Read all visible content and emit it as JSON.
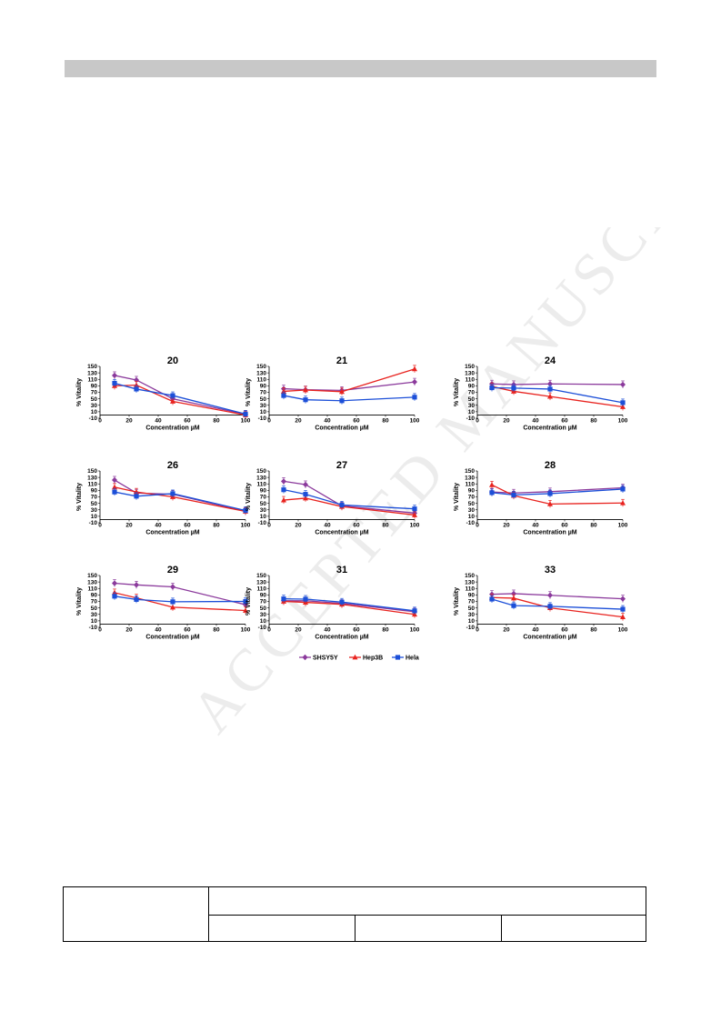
{
  "colors": {
    "SHSY5Y": "#8b3a9c",
    "Hep3B": "#e8231f",
    "Hela": "#1c4fd8",
    "header_bar": "#c8c8c8",
    "watermark": "#ececec"
  },
  "watermark": {
    "text": "ACCEPTED MANUSCRIPT"
  },
  "legend": [
    "SHSY5Y",
    "Hep3B",
    "Hela"
  ],
  "chart_data": [
    {
      "type": "line",
      "title": "20",
      "xlabel": "Concentration µM",
      "ylabel": "% Vitality",
      "x": [
        10,
        25,
        50,
        100
      ],
      "xlim": [
        0,
        100
      ],
      "ylim": [
        -10,
        150
      ],
      "xticks": [
        0,
        20,
        40,
        60,
        80,
        100
      ],
      "yticks": [
        -10,
        10,
        30,
        50,
        70,
        90,
        110,
        130,
        150
      ],
      "series": [
        {
          "name": "SHSY5Y",
          "values": [
            122,
            108,
            50,
            2
          ]
        },
        {
          "name": "Hep3B",
          "values": [
            90,
            92,
            42,
            0
          ]
        },
        {
          "name": "Hela",
          "values": [
            98,
            80,
            60,
            3
          ]
        }
      ]
    },
    {
      "type": "line",
      "title": "21",
      "xlabel": "Concentration µM",
      "ylabel": "% Vitality",
      "x": [
        10,
        25,
        50,
        100
      ],
      "xlim": [
        0,
        100
      ],
      "ylim": [
        -10,
        150
      ],
      "xticks": [
        0,
        20,
        40,
        60,
        80,
        100
      ],
      "yticks": [
        -10,
        10,
        30,
        50,
        70,
        90,
        110,
        130,
        150
      ],
      "series": [
        {
          "name": "SHSY5Y",
          "values": [
            81,
            78,
            76,
            102
          ]
        },
        {
          "name": "Hep3B",
          "values": [
            73,
            77,
            72,
            142
          ]
        },
        {
          "name": "Hela",
          "values": [
            60,
            47,
            44,
            55
          ]
        }
      ]
    },
    {
      "type": "line",
      "title": "24",
      "xlabel": "Concentration µM",
      "ylabel": "% Vitality",
      "x": [
        10,
        25,
        50,
        100
      ],
      "xlim": [
        0,
        100
      ],
      "ylim": [
        -10,
        150
      ],
      "xticks": [
        0,
        20,
        40,
        60,
        80,
        100
      ],
      "yticks": [
        -10,
        10,
        30,
        50,
        70,
        90,
        110,
        130,
        150
      ],
      "series": [
        {
          "name": "SHSY5Y",
          "values": [
            96,
            94,
            96,
            94
          ]
        },
        {
          "name": "Hep3B",
          "values": [
            88,
            73,
            57,
            25
          ]
        },
        {
          "name": "Hela",
          "values": [
            84,
            83,
            80,
            38
          ]
        }
      ]
    },
    {
      "type": "line",
      "title": "26",
      "xlabel": "Concentration µM",
      "ylabel": "% Vitality",
      "x": [
        10,
        25,
        50,
        100
      ],
      "xlim": [
        0,
        100
      ],
      "ylim": [
        -10,
        150
      ],
      "xticks": [
        0,
        20,
        40,
        60,
        80,
        100
      ],
      "yticks": [
        -10,
        10,
        30,
        50,
        70,
        90,
        110,
        130,
        150
      ],
      "series": [
        {
          "name": "SHSY5Y",
          "values": [
            122,
            82,
            78,
            26
          ]
        },
        {
          "name": "Hep3B",
          "values": [
            100,
            85,
            70,
            25
          ]
        },
        {
          "name": "Hela",
          "values": [
            85,
            72,
            80,
            28
          ]
        }
      ]
    },
    {
      "type": "line",
      "title": "27",
      "xlabel": "Concentration µM",
      "ylabel": "% Vitality",
      "x": [
        10,
        25,
        50,
        100
      ],
      "xlim": [
        0,
        100
      ],
      "ylim": [
        -10,
        150
      ],
      "xticks": [
        0,
        20,
        40,
        60,
        80,
        100
      ],
      "yticks": [
        -10,
        10,
        30,
        50,
        70,
        90,
        110,
        130,
        150
      ],
      "series": [
        {
          "name": "SHSY5Y",
          "values": [
            118,
            108,
            42,
            20
          ]
        },
        {
          "name": "Hep3B",
          "values": [
            60,
            66,
            40,
            14
          ]
        },
        {
          "name": "Hela",
          "values": [
            92,
            78,
            45,
            33
          ]
        }
      ]
    },
    {
      "type": "line",
      "title": "28",
      "xlabel": "Concentration µM",
      "ylabel": "% Vitality",
      "x": [
        10,
        25,
        50,
        100
      ],
      "xlim": [
        0,
        100
      ],
      "ylim": [
        -10,
        150
      ],
      "xticks": [
        0,
        20,
        40,
        60,
        80,
        100
      ],
      "yticks": [
        -10,
        10,
        30,
        50,
        70,
        90,
        110,
        130,
        150
      ],
      "series": [
        {
          "name": "SHSY5Y",
          "values": [
            85,
            82,
            86,
            98
          ]
        },
        {
          "name": "Hep3B",
          "values": [
            107,
            74,
            48,
            51
          ]
        },
        {
          "name": "Hela",
          "values": [
            83,
            76,
            80,
            94
          ]
        }
      ]
    },
    {
      "type": "line",
      "title": "29",
      "xlabel": "Concentration µM",
      "ylabel": "% Vitality",
      "x": [
        10,
        25,
        50,
        100
      ],
      "xlim": [
        0,
        100
      ],
      "ylim": [
        -10,
        150
      ],
      "xticks": [
        0,
        20,
        40,
        60,
        80,
        100
      ],
      "yticks": [
        -10,
        10,
        30,
        50,
        70,
        90,
        110,
        130,
        150
      ],
      "series": [
        {
          "name": "SHSY5Y",
          "values": [
            126,
            121,
            115,
            60
          ]
        },
        {
          "name": "Hep3B",
          "values": [
            97,
            81,
            52,
            42
          ]
        },
        {
          "name": "Hela",
          "values": [
            86,
            76,
            69,
            70
          ]
        }
      ]
    },
    {
      "type": "line",
      "title": "31",
      "xlabel": "Concentration µM",
      "ylabel": "% Vitality",
      "x": [
        10,
        25,
        50,
        100
      ],
      "xlim": [
        0,
        100
      ],
      "ylim": [
        -10,
        150
      ],
      "xticks": [
        0,
        20,
        40,
        60,
        80,
        100
      ],
      "yticks": [
        -10,
        10,
        30,
        50,
        70,
        90,
        110,
        130,
        150
      ],
      "series": [
        {
          "name": "SHSY5Y",
          "values": [
            72,
            72,
            64,
            38
          ]
        },
        {
          "name": "Hep3B",
          "values": [
            70,
            67,
            61,
            30
          ]
        },
        {
          "name": "Hela",
          "values": [
            78,
            77,
            68,
            41
          ]
        }
      ]
    },
    {
      "type": "line",
      "title": "33",
      "xlabel": "Concentration µM",
      "ylabel": "% Vitality",
      "x": [
        10,
        25,
        50,
        100
      ],
      "xlim": [
        0,
        100
      ],
      "ylim": [
        -10,
        150
      ],
      "xticks": [
        0,
        20,
        40,
        60,
        80,
        100
      ],
      "yticks": [
        -10,
        10,
        30,
        50,
        70,
        90,
        110,
        130,
        150
      ],
      "series": [
        {
          "name": "SHSY5Y",
          "values": [
            92,
            94,
            89,
            78
          ]
        },
        {
          "name": "Hep3B",
          "values": [
            82,
            80,
            50,
            22
          ]
        },
        {
          "name": "Hela",
          "values": [
            77,
            57,
            55,
            46
          ]
        }
      ]
    }
  ]
}
